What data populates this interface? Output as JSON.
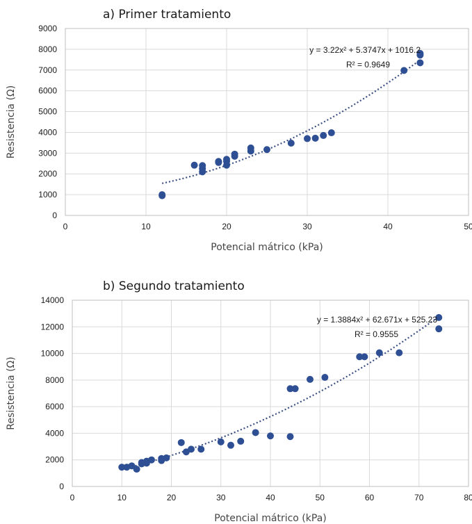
{
  "chart_data": [
    {
      "type": "scatter",
      "title": "a) Primer tratamiento",
      "xlabel": "Potencial mátrico (kPa)",
      "ylabel": "Resistencia (Ω)",
      "xlim": [
        0,
        50
      ],
      "ylim": [
        0,
        9000
      ],
      "xticks": [
        "0",
        "10",
        "20",
        "30",
        "40",
        "50"
      ],
      "yticks": [
        "0",
        "1000",
        "2000",
        "3000",
        "4000",
        "5000",
        "6000",
        "7000",
        "8000",
        "9000"
      ],
      "grid": true,
      "marker_color": "#2e4f93",
      "trendline": {
        "type": "polynomial",
        "coefficients": [
          3.22,
          5.3747,
          1016.2
        ],
        "x_range": [
          12,
          44
        ],
        "equation": "y = 3.22x² + 5.3747x + 1016.2",
        "r2_label": "R² = 0.9649"
      },
      "points": [
        [
          12,
          950
        ],
        [
          12,
          1000
        ],
        [
          16,
          2420
        ],
        [
          17,
          2100
        ],
        [
          17,
          2250
        ],
        [
          17,
          2400
        ],
        [
          19,
          2550
        ],
        [
          19,
          2600
        ],
        [
          20,
          2420
        ],
        [
          20,
          2600
        ],
        [
          20,
          2700
        ],
        [
          21,
          2850
        ],
        [
          21,
          2950
        ],
        [
          23,
          3100
        ],
        [
          23,
          3250
        ],
        [
          25,
          3170
        ],
        [
          28,
          3480
        ],
        [
          30,
          3700
        ],
        [
          31,
          3720
        ],
        [
          32,
          3850
        ],
        [
          33,
          3980
        ],
        [
          42,
          6980
        ],
        [
          44,
          7350
        ],
        [
          44,
          7720
        ],
        [
          44,
          7800
        ]
      ]
    },
    {
      "type": "scatter",
      "title": "b) Segundo tratamiento",
      "xlabel": "Potencial mátrico (kPa)",
      "ylabel": "Resistencia (Ω)",
      "xlim": [
        0,
        80
      ],
      "ylim": [
        0,
        14000
      ],
      "xticks": [
        "0",
        "10",
        "20",
        "30",
        "40",
        "50",
        "60",
        "70",
        "80"
      ],
      "yticks": [
        "0",
        "2000",
        "4000",
        "6000",
        "8000",
        "10000",
        "12000",
        "14000"
      ],
      "grid": true,
      "marker_color": "#2e4f93",
      "trendline": {
        "type": "polynomial",
        "coefficients": [
          1.3884,
          62.671,
          525.23
        ],
        "x_range": [
          10,
          74
        ],
        "equation": "y = 1.3884x² + 62.671x + 525.23",
        "r2_label": "R² = 0.9555"
      },
      "points": [
        [
          10,
          1450
        ],
        [
          11,
          1450
        ],
        [
          12,
          1550
        ],
        [
          13,
          1300
        ],
        [
          14,
          1700
        ],
        [
          14,
          1800
        ],
        [
          15,
          1750
        ],
        [
          15,
          1900
        ],
        [
          16,
          2000
        ],
        [
          18,
          1950
        ],
        [
          18,
          2100
        ],
        [
          19,
          2150
        ],
        [
          22,
          3300
        ],
        [
          23,
          2600
        ],
        [
          24,
          2800
        ],
        [
          26,
          2800
        ],
        [
          30,
          3350
        ],
        [
          32,
          3100
        ],
        [
          34,
          3400
        ],
        [
          37,
          4050
        ],
        [
          40,
          3800
        ],
        [
          44,
          3750
        ],
        [
          44,
          7350
        ],
        [
          45,
          7350
        ],
        [
          48,
          8050
        ],
        [
          51,
          8200
        ],
        [
          58,
          9750
        ],
        [
          59,
          9750
        ],
        [
          62,
          10050
        ],
        [
          66,
          10050
        ],
        [
          74,
          11850
        ],
        [
          74,
          12700
        ]
      ]
    }
  ]
}
